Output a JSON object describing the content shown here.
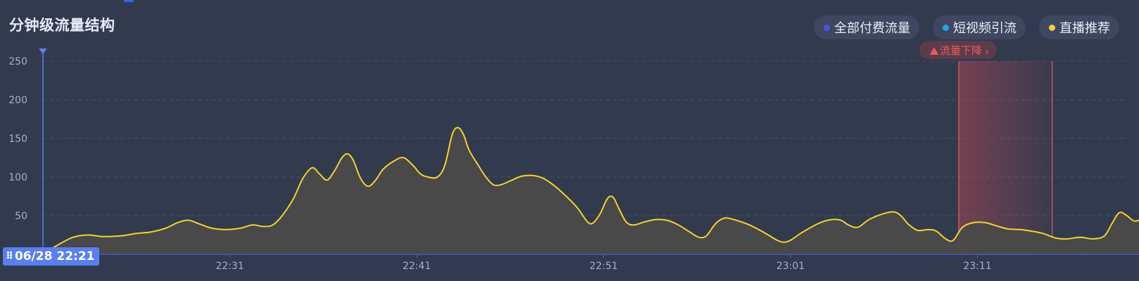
{
  "title": "分钟级流量结构",
  "legend": [
    {
      "label": "全部付费流量",
      "color": "#3a5bf0"
    },
    {
      "label": "短视频引流",
      "color": "#1aa7f0"
    },
    {
      "label": "直播推荐",
      "color": "#f5d22a"
    }
  ],
  "alert": {
    "label": "流量下降",
    "chevron": "›"
  },
  "cursor_time": "06/28 22:21",
  "chart_data": {
    "type": "line",
    "ylim": [
      0,
      250
    ],
    "yticks": [
      0,
      50,
      100,
      150,
      200,
      250
    ],
    "xticks": [
      {
        "label": "22:31",
        "minute": 10
      },
      {
        "label": "22:41",
        "minute": 20
      },
      {
        "label": "22:51",
        "minute": 30
      },
      {
        "label": "23:01",
        "minute": 40
      },
      {
        "label": "23:11",
        "minute": 50
      }
    ],
    "x_range_minutes": [
      0,
      58
    ],
    "highlight_minutes": [
      49.0,
      54.0
    ],
    "series": [
      {
        "name": "直播推荐",
        "color": "#f5d22a",
        "fill": true,
        "points": [
          [
            0,
            0
          ],
          [
            0.8,
            12
          ],
          [
            1.6,
            22
          ],
          [
            2.4,
            25
          ],
          [
            3.2,
            23
          ],
          [
            4.2,
            24
          ],
          [
            5.0,
            27
          ],
          [
            5.8,
            29
          ],
          [
            6.6,
            34
          ],
          [
            7.2,
            41
          ],
          [
            7.8,
            44
          ],
          [
            8.4,
            39
          ],
          [
            9.0,
            34
          ],
          [
            9.8,
            32
          ],
          [
            10.6,
            34
          ],
          [
            11.2,
            38
          ],
          [
            11.8,
            36
          ],
          [
            12.3,
            38
          ],
          [
            12.8,
            50
          ],
          [
            13.4,
            72
          ],
          [
            13.9,
            98
          ],
          [
            14.4,
            112
          ],
          [
            14.8,
            104
          ],
          [
            15.2,
            96
          ],
          [
            15.6,
            108
          ],
          [
            16.0,
            125
          ],
          [
            16.3,
            130
          ],
          [
            16.6,
            122
          ],
          [
            17.0,
            98
          ],
          [
            17.4,
            88
          ],
          [
            17.8,
            96
          ],
          [
            18.2,
            110
          ],
          [
            18.8,
            121
          ],
          [
            19.3,
            125
          ],
          [
            19.8,
            115
          ],
          [
            20.2,
            104
          ],
          [
            20.6,
            100
          ],
          [
            21.1,
            100
          ],
          [
            21.5,
            115
          ],
          [
            21.9,
            155
          ],
          [
            22.2,
            164
          ],
          [
            22.5,
            155
          ],
          [
            22.8,
            135
          ],
          [
            23.3,
            115
          ],
          [
            23.7,
            100
          ],
          [
            24.1,
            90
          ],
          [
            24.5,
            90
          ],
          [
            25.0,
            95
          ],
          [
            25.6,
            101
          ],
          [
            26.2,
            102
          ],
          [
            26.8,
            98
          ],
          [
            27.4,
            88
          ],
          [
            28.0,
            75
          ],
          [
            28.6,
            60
          ],
          [
            29.1,
            43
          ],
          [
            29.4,
            40
          ],
          [
            29.8,
            52
          ],
          [
            30.2,
            72
          ],
          [
            30.5,
            74
          ],
          [
            30.8,
            60
          ],
          [
            31.2,
            42
          ],
          [
            31.6,
            38
          ],
          [
            32.2,
            42
          ],
          [
            32.8,
            45
          ],
          [
            33.4,
            44
          ],
          [
            34.0,
            38
          ],
          [
            34.6,
            29
          ],
          [
            35.1,
            22
          ],
          [
            35.5,
            24
          ],
          [
            36.0,
            40
          ],
          [
            36.5,
            47
          ],
          [
            37.1,
            44
          ],
          [
            37.8,
            38
          ],
          [
            38.6,
            28
          ],
          [
            39.4,
            17
          ],
          [
            39.9,
            17
          ],
          [
            40.6,
            28
          ],
          [
            41.5,
            40
          ],
          [
            42.2,
            45
          ],
          [
            42.7,
            44
          ],
          [
            43.1,
            38
          ],
          [
            43.6,
            35
          ],
          [
            44.2,
            45
          ],
          [
            44.9,
            52
          ],
          [
            45.5,
            55
          ],
          [
            45.9,
            50
          ],
          [
            46.3,
            39
          ],
          [
            46.8,
            31
          ],
          [
            47.4,
            32
          ],
          [
            47.8,
            30
          ],
          [
            48.3,
            20
          ],
          [
            48.7,
            18
          ],
          [
            49.2,
            35
          ],
          [
            49.8,
            41
          ],
          [
            50.4,
            41
          ],
          [
            51.0,
            37
          ],
          [
            51.6,
            33
          ],
          [
            52.3,
            32
          ],
          [
            52.9,
            30
          ],
          [
            53.5,
            27
          ],
          [
            54.2,
            21
          ],
          [
            54.8,
            20
          ],
          [
            55.5,
            22
          ],
          [
            56.2,
            20
          ],
          [
            56.8,
            24
          ],
          [
            57.2,
            40
          ],
          [
            57.6,
            54
          ],
          [
            58.0,
            50
          ],
          [
            58.4,
            43
          ],
          [
            58.9,
            46
          ],
          [
            59.4,
            47
          ],
          [
            59.9,
            36
          ],
          [
            60.4,
            22
          ]
        ]
      },
      {
        "name": "短视频引流",
        "color": "#1aa7f0",
        "fill": false,
        "points": [
          [
            0,
            0
          ],
          [
            2.0,
            1
          ],
          [
            3.0,
            2
          ],
          [
            5.0,
            1
          ],
          [
            15.0,
            1
          ],
          [
            17.0,
            1.5
          ],
          [
            19.0,
            2
          ],
          [
            21.0,
            1
          ],
          [
            32.0,
            1
          ],
          [
            34.0,
            1.5
          ],
          [
            36.0,
            1
          ],
          [
            52.0,
            1
          ],
          [
            55.0,
            1.5
          ],
          [
            57.0,
            1
          ],
          [
            60.4,
            1
          ]
        ]
      },
      {
        "name": "全部付费流量",
        "color": "#3a5bf0",
        "fill": false,
        "points": [
          [
            0,
            0
          ],
          [
            60.4,
            0
          ]
        ]
      }
    ]
  }
}
